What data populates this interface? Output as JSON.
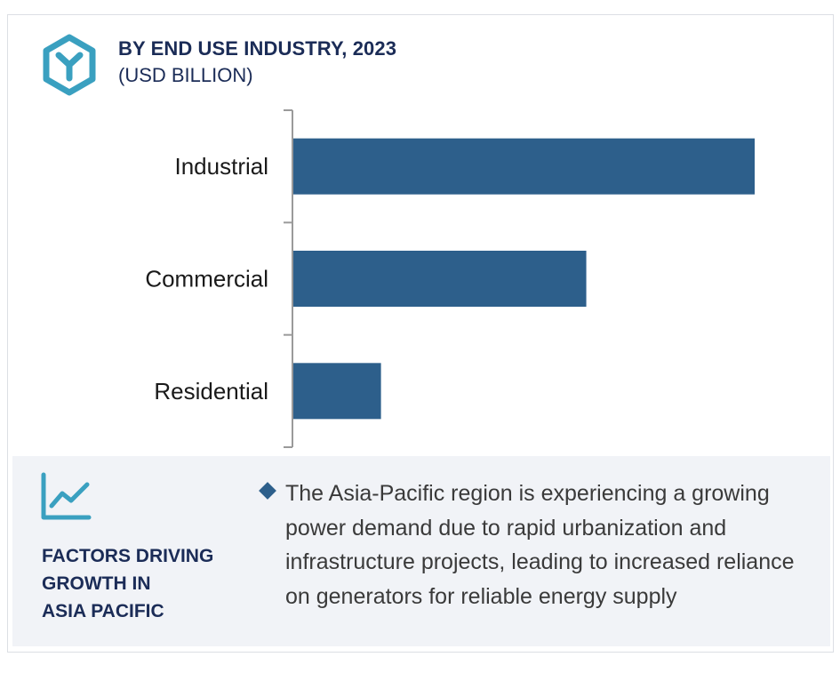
{
  "header": {
    "title": "BY END USE INDUSTRY, 2023",
    "subtitle": "(USD BILLION)",
    "icon": "hexagon-y-logo-icon"
  },
  "colors": {
    "bar": "#2d5f8b",
    "heading": "#1b2c57",
    "accent": "#3aa0c0",
    "panel_background": "#f1f3f7"
  },
  "chart_data": {
    "type": "bar",
    "orientation": "horizontal",
    "categories": [
      "Industrial",
      "Commercial",
      "Residential"
    ],
    "values": [
      100,
      63.5,
      19
    ],
    "xlim": [
      0,
      100
    ],
    "value_axis_shown": false,
    "grid": false,
    "legend": "none"
  },
  "panel": {
    "icon": "line-chart-icon",
    "heading_lines": [
      "FACTORS DRIVING",
      "GROWTH IN",
      "ASIA PACIFIC"
    ],
    "text": "The Asia-Pacific region is experiencing a growing power demand due to rapid urbanization and infrastructure projects, leading to increased reliance on generators for reliable energy supply"
  }
}
